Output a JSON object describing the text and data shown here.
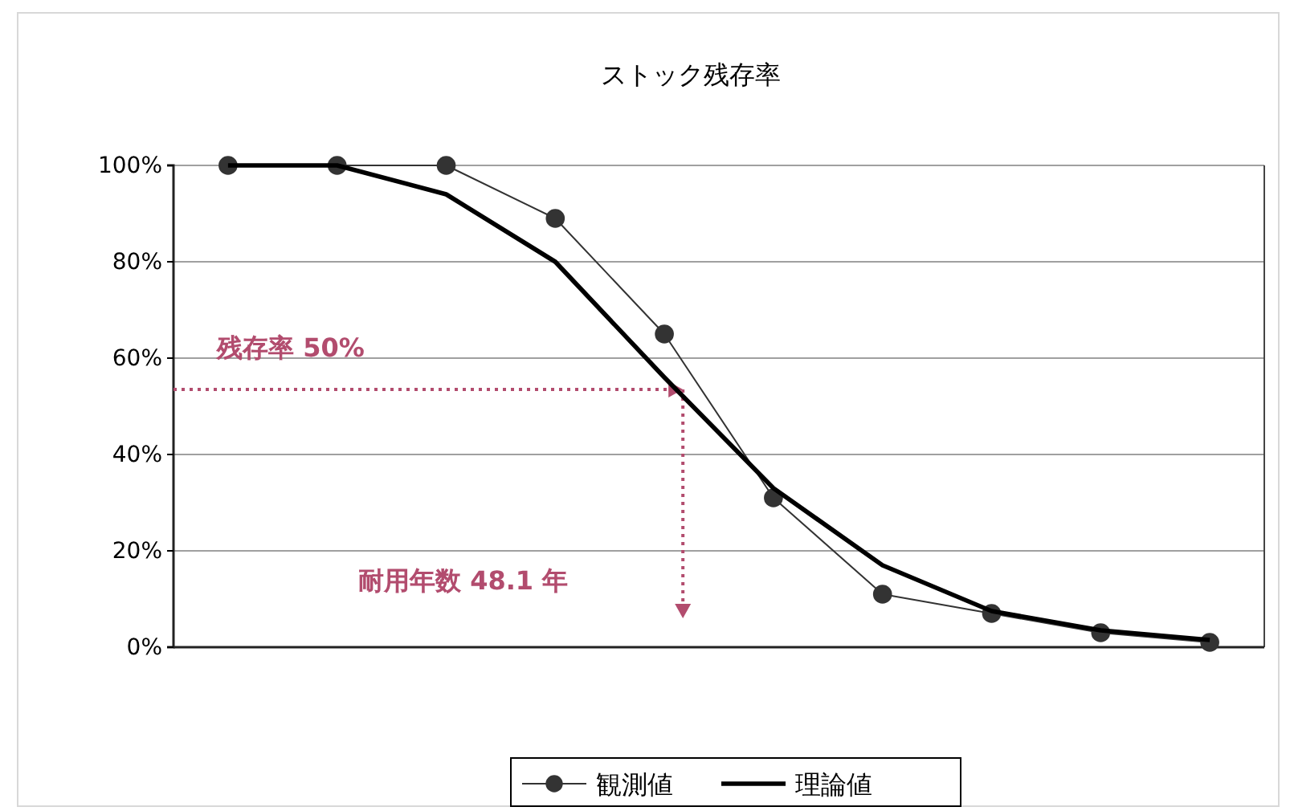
{
  "chart_data": {
    "type": "line",
    "title": "ストック残存率",
    "categories": [
      null,
      null,
      null,
      null,
      null,
      null,
      null,
      null,
      null,
      null
    ],
    "series": [
      {
        "name": "観測値",
        "color": "#333333",
        "marker": "circle",
        "values": [
          100,
          100,
          100,
          89,
          65,
          31,
          11,
          7,
          3,
          1
        ]
      },
      {
        "name": "理論値",
        "color": "#000000",
        "marker": "none",
        "values": [
          100,
          100,
          94,
          80,
          56,
          33,
          17,
          7.5,
          3.5,
          1.5
        ]
      }
    ],
    "ylim": [
      0,
      100
    ],
    "yticks": [
      {
        "value": 0,
        "label": "0%"
      },
      {
        "value": 20,
        "label": "20%"
      },
      {
        "value": 40,
        "label": "40%"
      },
      {
        "value": 60,
        "label": "60%"
      },
      {
        "value": 80,
        "label": "80%"
      },
      {
        "value": 100,
        "label": "100%"
      }
    ],
    "grid": "y",
    "legend": "bottom",
    "annotations": [
      "残存率 50%",
      "耐用年数 48.1 年"
    ]
  }
}
